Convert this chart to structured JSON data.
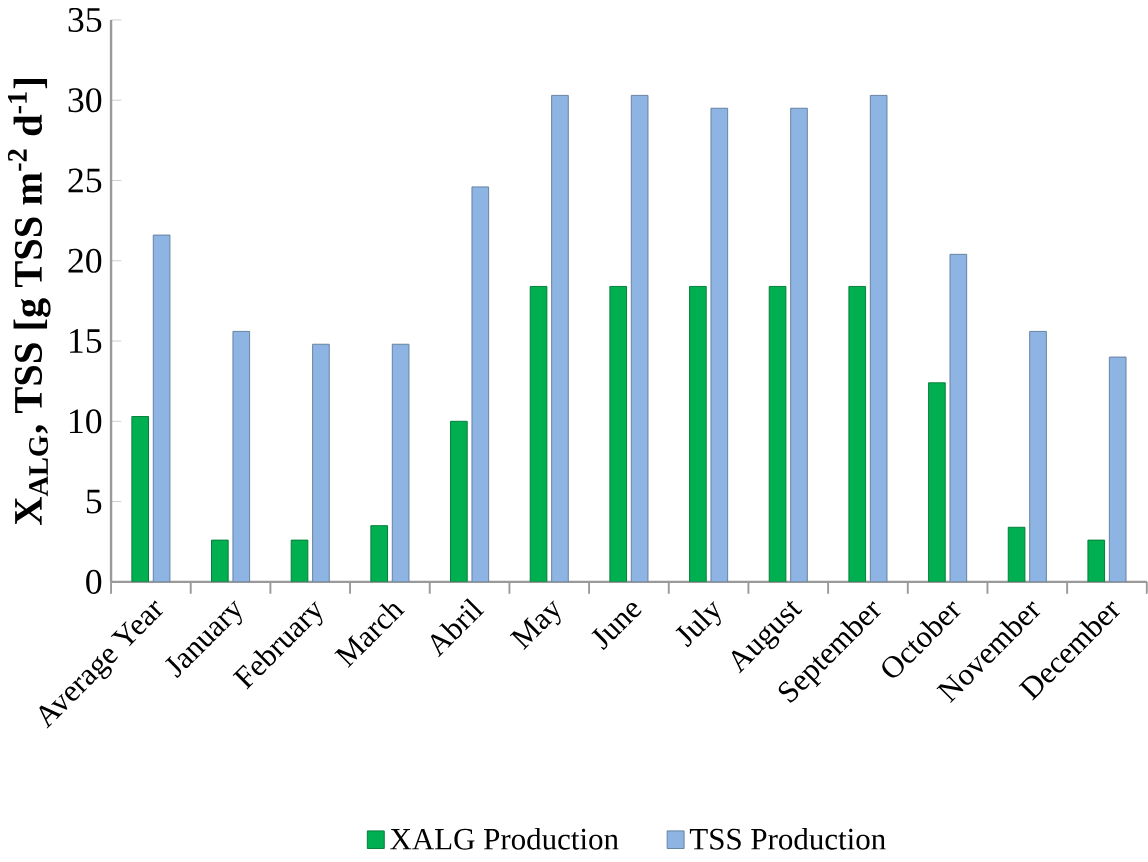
{
  "chart_data": {
    "type": "bar",
    "ylabel": "X$_{ALG}$, TSS [g TSS m$^{-2}$ d$^{-1}$]",
    "categories": [
      "Average Year",
      "January",
      "February",
      "March",
      "Abril",
      "May",
      "June",
      "July",
      "August",
      "September",
      "October",
      "November",
      "December"
    ],
    "series": [
      {
        "name": "XALG Production",
        "color": "#00b050",
        "values": [
          10.3,
          2.6,
          2.6,
          3.5,
          10.0,
          18.4,
          18.4,
          18.4,
          18.4,
          18.4,
          12.4,
          3.4,
          2.6
        ]
      },
      {
        "name": "TSS Production",
        "color": "#8db4e2",
        "values": [
          21.6,
          15.6,
          14.8,
          14.8,
          24.6,
          30.3,
          30.3,
          29.5,
          29.5,
          30.3,
          20.4,
          15.6,
          14.0
        ]
      }
    ],
    "ylim": [
      0,
      35
    ],
    "yticks": [
      0,
      5,
      10,
      15,
      20,
      25,
      30,
      35
    ],
    "grid": false,
    "legend": "bottom"
  }
}
